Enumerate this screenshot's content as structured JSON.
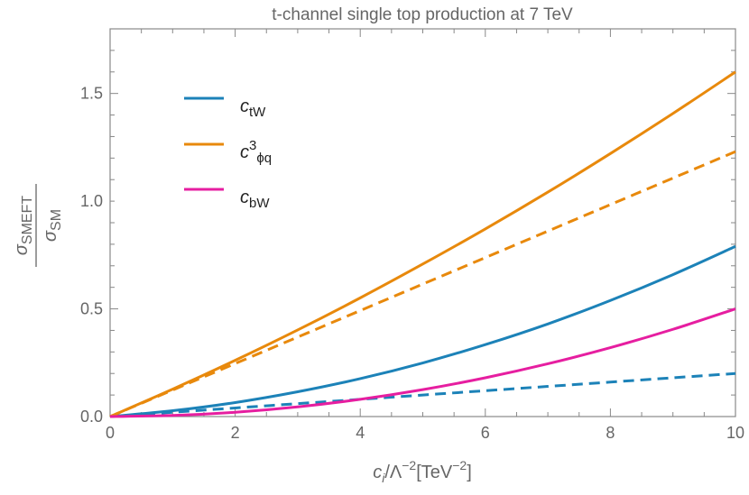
{
  "chart_data": {
    "type": "line",
    "title": "t-channel single top production at 7 TeV",
    "xlabel": {
      "c": "c",
      "i": "i",
      "mid": "/Λ",
      "exp1": "−2",
      "unit": "[TeV",
      "exp2": "−2",
      "close": "]"
    },
    "ylabel": {
      "num": "σ",
      "num_sub": "SMEFT",
      "den": "σ",
      "den_sub": "SM"
    },
    "xlim": [
      0,
      10
    ],
    "ylim": [
      0,
      1.8
    ],
    "x_ticks": [
      "0",
      "2",
      "4",
      "6",
      "8",
      "10"
    ],
    "y_ticks": [
      "0.0",
      "0.5",
      "1.0",
      "1.5"
    ],
    "grid": false,
    "legend_placement": "top-left",
    "legend": [
      {
        "c": "c",
        "sup": "",
        "sub": "tW",
        "color": "#1c82b8"
      },
      {
        "c": "c",
        "sup": "3",
        "sub": "ϕq",
        "color": "#e8890c"
      },
      {
        "c": "c",
        "sup": "",
        "sub": "bW",
        "color": "#e61ea0"
      }
    ],
    "x": [
      0,
      1,
      2,
      3,
      4,
      5,
      6,
      7,
      8,
      9,
      10
    ],
    "series": [
      {
        "legend": 0,
        "style": "solid",
        "color": "#1c82b8",
        "values": [
          0,
          0.027,
          0.065,
          0.115,
          0.176,
          0.249,
          0.334,
          0.43,
          0.539,
          0.659,
          0.79
        ]
      },
      {
        "legend": 0,
        "style": "dashed",
        "color": "#1c82b8",
        "values": [
          0,
          0.02,
          0.04,
          0.06,
          0.08,
          0.1,
          0.12,
          0.14,
          0.16,
          0.18,
          0.2
        ]
      },
      {
        "legend": 1,
        "style": "solid",
        "color": "#e8890c",
        "values": [
          0,
          0.127,
          0.261,
          0.402,
          0.551,
          0.708,
          0.871,
          1.042,
          1.221,
          1.407,
          1.6
        ]
      },
      {
        "legend": 1,
        "style": "dashed",
        "color": "#e8890c",
        "values": [
          0,
          0.123,
          0.246,
          0.369,
          0.492,
          0.615,
          0.738,
          0.861,
          0.984,
          1.107,
          1.23
        ]
      },
      {
        "legend": 2,
        "style": "solid",
        "color": "#e61ea0",
        "values": [
          0,
          0.005,
          0.02,
          0.045,
          0.08,
          0.125,
          0.18,
          0.245,
          0.32,
          0.405,
          0.5
        ]
      }
    ]
  }
}
